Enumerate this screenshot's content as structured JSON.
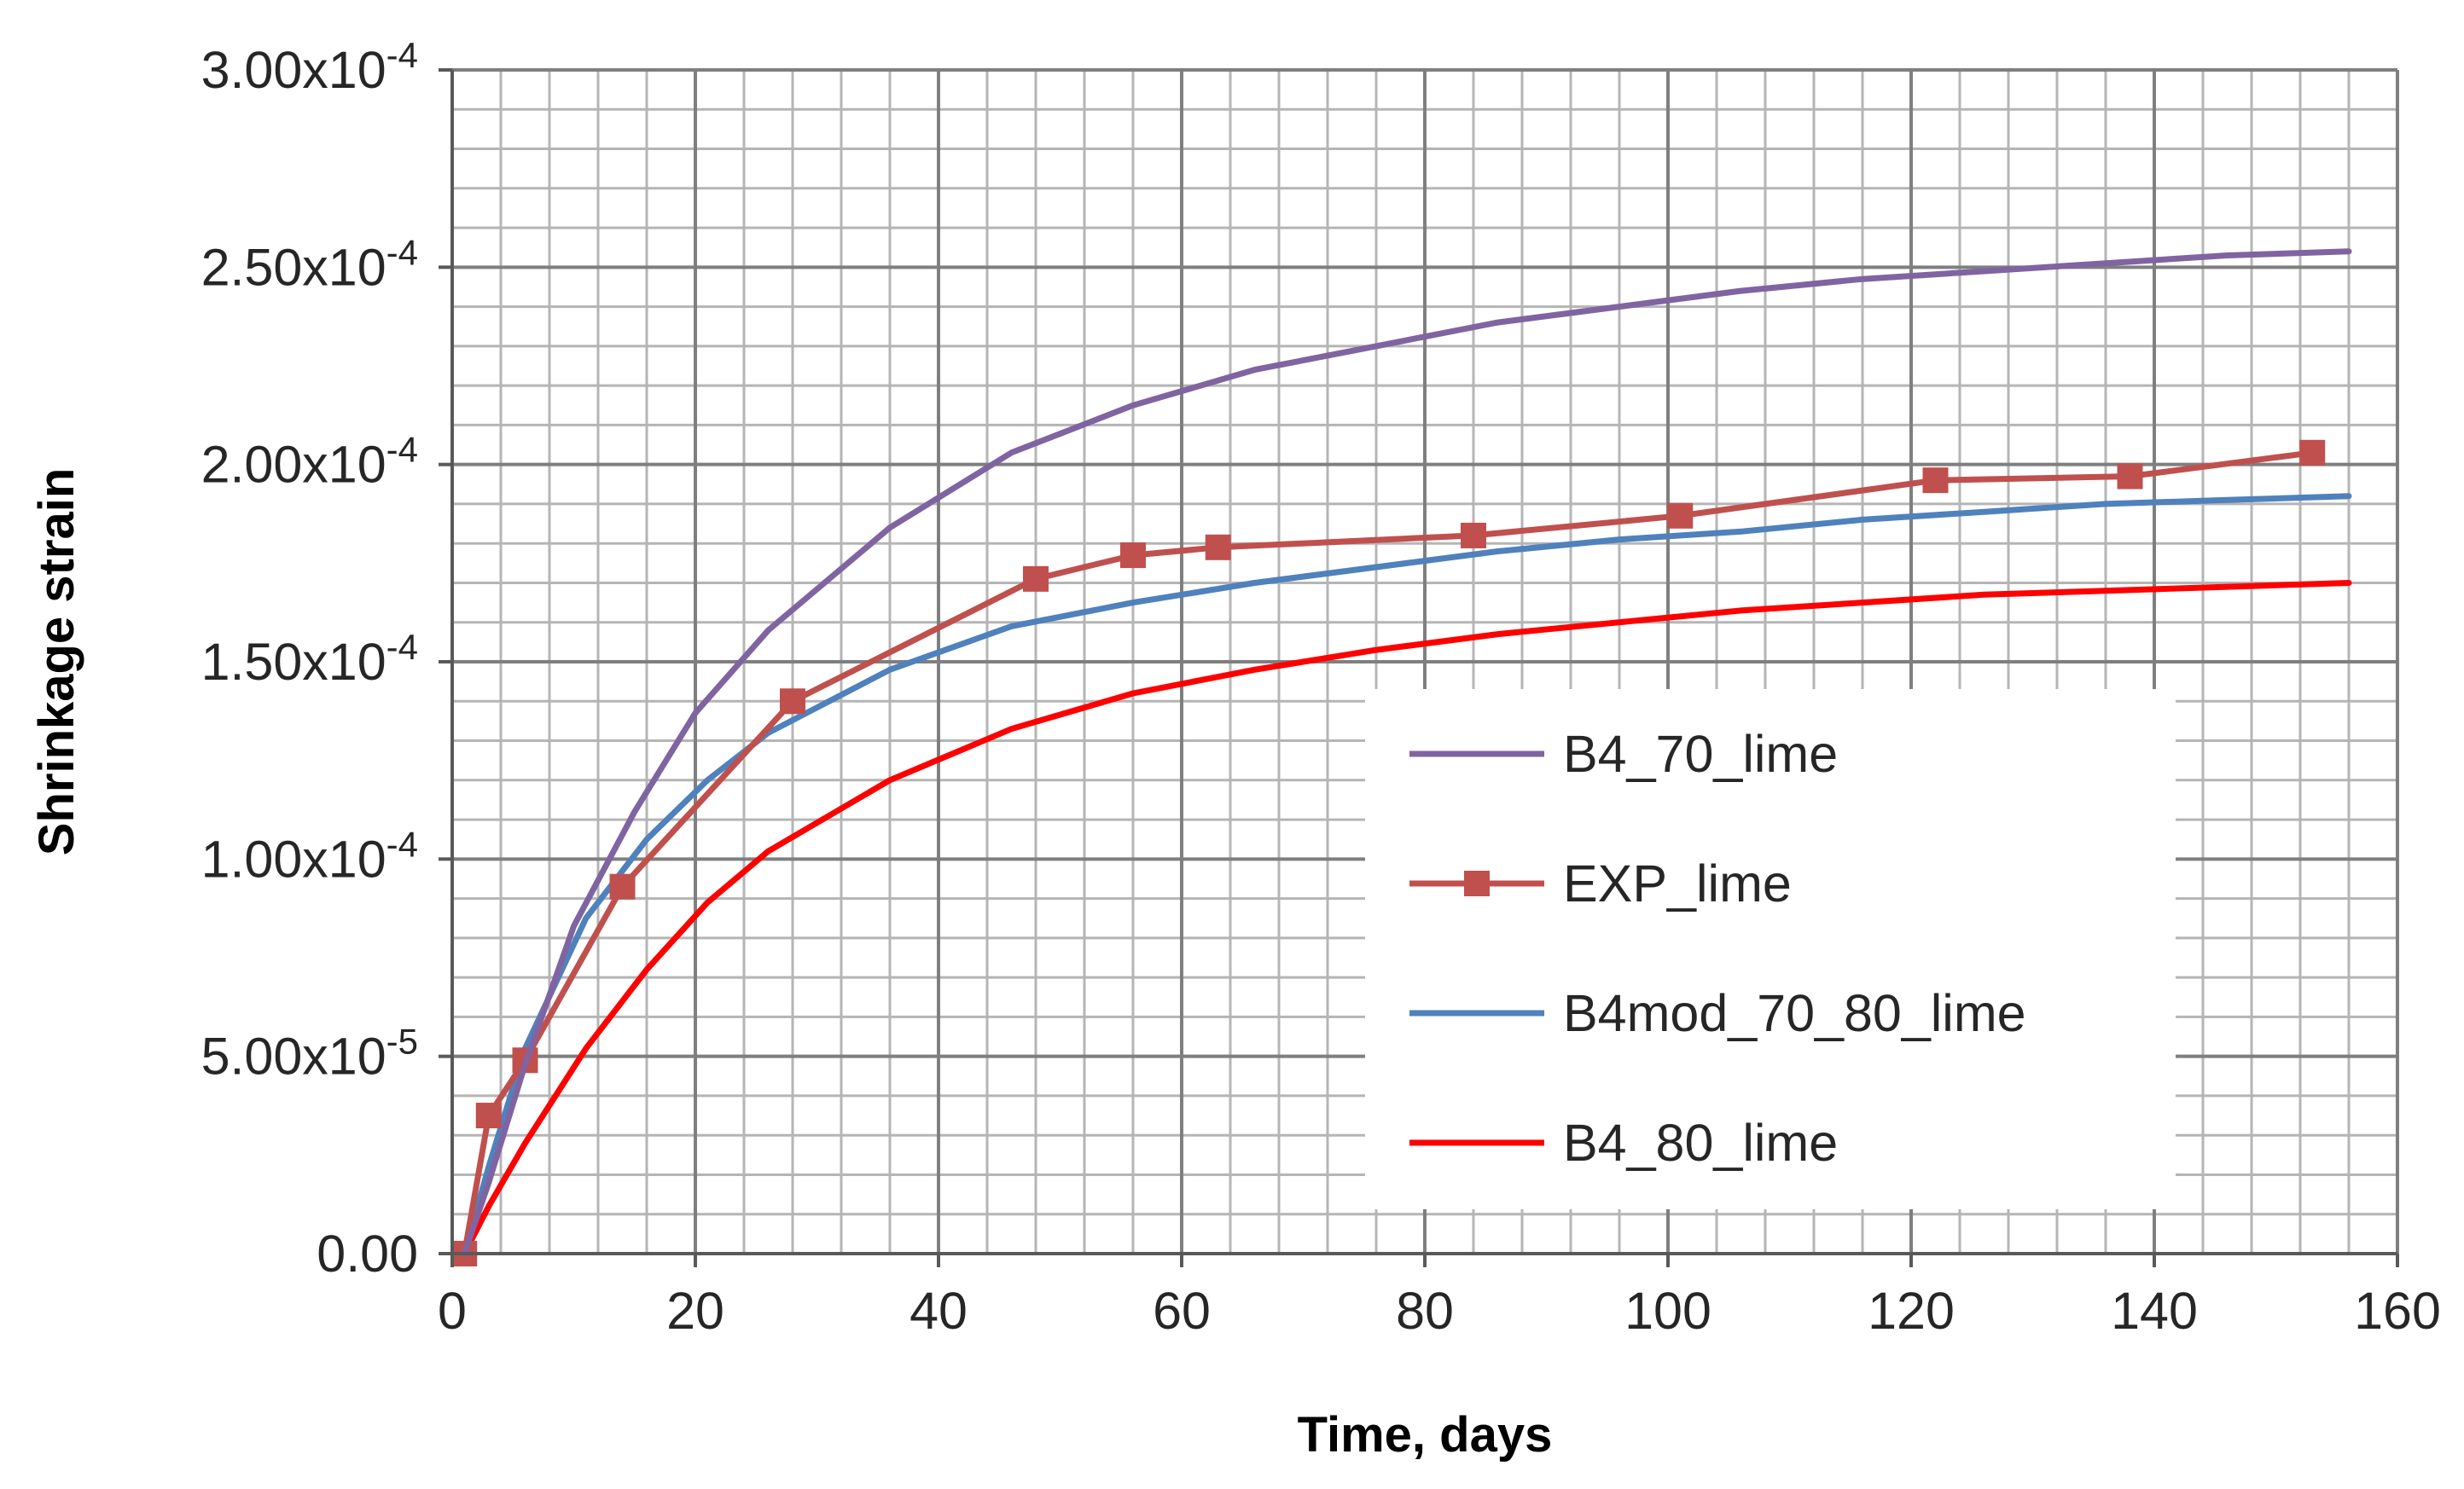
{
  "chart_data": {
    "type": "line",
    "title": "",
    "xlabel": "Time, days",
    "ylabel": "Shrinkage strain",
    "xlim": [
      0,
      160
    ],
    "ylim": [
      0,
      0.0003
    ],
    "x_ticks": [
      0,
      20,
      40,
      60,
      80,
      100,
      120,
      140,
      160
    ],
    "x_tick_labels": [
      "0",
      "20",
      "40",
      "60",
      "80",
      "100",
      "120",
      "140",
      "160"
    ],
    "y_ticks": [
      0,
      5e-05,
      0.0001,
      0.00015,
      0.0002,
      0.00025,
      0.0003
    ],
    "y_tick_labels": [
      {
        "mantissa": "0.00",
        "exponent": ""
      },
      {
        "mantissa": "5.00x10",
        "exponent": "-5"
      },
      {
        "mantissa": "1.00x10",
        "exponent": "-4"
      },
      {
        "mantissa": "1.50x10",
        "exponent": "-4"
      },
      {
        "mantissa": "2.00x10",
        "exponent": "-4"
      },
      {
        "mantissa": "2.50x10",
        "exponent": "-4"
      },
      {
        "mantissa": "3.00x10",
        "exponent": "-4"
      }
    ],
    "grid": {
      "major": true,
      "minor": true,
      "minor_x_step": 4,
      "minor_y_step": 1e-05
    },
    "legend_position": "lower-right inside plot",
    "series": [
      {
        "name": "B4_70_lime",
        "color": "#8064A2",
        "marker": "none",
        "x": [
          1,
          3,
          6,
          10,
          15,
          20,
          26,
          36,
          46,
          56,
          66,
          76,
          86,
          96,
          106,
          116,
          126,
          136,
          146,
          156
        ],
        "y": [
          0,
          1.8e-05,
          4.8e-05,
          8.3e-05,
          0.000112,
          0.000137,
          0.000158,
          0.000184,
          0.000203,
          0.000215,
          0.000224,
          0.00023,
          0.000236,
          0.00024,
          0.000244,
          0.000247,
          0.000249,
          0.000251,
          0.000253,
          0.000254
        ]
      },
      {
        "name": "EXP_lime",
        "color": "#C0504D",
        "marker": "square",
        "x": [
          1,
          3,
          6,
          14,
          28,
          48,
          56,
          63,
          84,
          101,
          122,
          138,
          153
        ],
        "y": [
          0,
          3.5e-05,
          4.9e-05,
          9.3e-05,
          0.00014,
          0.000171,
          0.000177,
          0.000179,
          0.000182,
          0.000187,
          0.000196,
          0.000197,
          0.000203
        ]
      },
      {
        "name": "B4mod_70_80_lime",
        "color": "#4F81BD",
        "marker": "none",
        "x": [
          1,
          3,
          6,
          11,
          16,
          21,
          26,
          36,
          46,
          56,
          66,
          76,
          86,
          96,
          106,
          116,
          126,
          136,
          146,
          156
        ],
        "y": [
          0,
          2.2e-05,
          5.2e-05,
          8.5e-05,
          0.000105,
          0.00012,
          0.000132,
          0.000148,
          0.000159,
          0.000165,
          0.00017,
          0.000174,
          0.000178,
          0.000181,
          0.000183,
          0.000186,
          0.000188,
          0.00019,
          0.000191,
          0.000192
        ]
      },
      {
        "name": "B4_80_lime",
        "color": "#FF0000",
        "marker": "none",
        "x": [
          1,
          3,
          6,
          11,
          16,
          21,
          26,
          36,
          46,
          56,
          66,
          76,
          86,
          96,
          106,
          116,
          126,
          136,
          146,
          156
        ],
        "y": [
          0,
          1.2e-05,
          2.8e-05,
          5.2e-05,
          7.2e-05,
          8.9e-05,
          0.000102,
          0.00012,
          0.000133,
          0.000142,
          0.000148,
          0.000153,
          0.000157,
          0.00016,
          0.000163,
          0.000165,
          0.000167,
          0.000168,
          0.000169,
          0.00017
        ]
      }
    ]
  }
}
